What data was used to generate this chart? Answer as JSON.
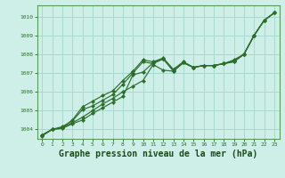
{
  "background_color": "#ceeee8",
  "plot_bg_color": "#ceeee8",
  "grid_color": "#a8d8d0",
  "line_color": "#2d6e2d",
  "marker_color": "#2d6e2d",
  "title": "Graphe pression niveau de la mer (hPa)",
  "title_fontsize": 7,
  "xlim": [
    -0.5,
    23.5
  ],
  "ylim": [
    1003.5,
    1010.6
  ],
  "yticks": [
    1004,
    1005,
    1006,
    1007,
    1008,
    1009,
    1010
  ],
  "xticks": [
    0,
    1,
    2,
    3,
    4,
    5,
    6,
    7,
    8,
    9,
    10,
    11,
    12,
    13,
    14,
    15,
    16,
    17,
    18,
    19,
    20,
    21,
    22,
    23
  ],
  "series1": [
    1003.7,
    1004.0,
    1004.05,
    1004.3,
    1004.5,
    1004.85,
    1005.15,
    1005.45,
    1005.75,
    1006.9,
    1007.05,
    1007.55,
    1007.75,
    1007.1,
    1007.55,
    1007.3,
    1007.4,
    1007.4,
    1007.5,
    1007.6,
    1008.0,
    1009.0,
    1009.8,
    1010.2
  ],
  "series2": [
    1003.7,
    1004.0,
    1004.1,
    1004.35,
    1004.65,
    1005.0,
    1005.35,
    1005.65,
    1006.0,
    1006.3,
    1006.6,
    1007.45,
    1007.15,
    1007.1,
    1007.55,
    1007.3,
    1007.4,
    1007.4,
    1007.5,
    1007.65,
    1008.0,
    1009.0,
    1009.8,
    1010.2
  ],
  "series3": [
    1003.7,
    1004.0,
    1004.15,
    1004.45,
    1005.05,
    1005.25,
    1005.55,
    1005.85,
    1006.4,
    1007.0,
    1007.6,
    1007.5,
    1007.75,
    1007.15,
    1007.55,
    1007.3,
    1007.4,
    1007.4,
    1007.5,
    1007.6,
    1008.0,
    1009.0,
    1009.8,
    1010.2
  ],
  "series4": [
    1003.65,
    1004.0,
    1004.1,
    1004.5,
    1005.2,
    1005.5,
    1005.8,
    1006.05,
    1006.6,
    1007.1,
    1007.7,
    1007.6,
    1007.8,
    1007.2,
    1007.6,
    1007.3,
    1007.4,
    1007.4,
    1007.5,
    1007.7,
    1008.0,
    1009.0,
    1009.8,
    1010.2
  ]
}
